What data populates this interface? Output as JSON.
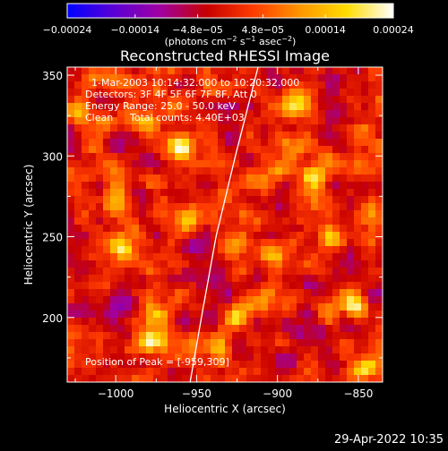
{
  "footer": {
    "timestamp": "29-Apr-2022 10:35"
  },
  "chart_data": {
    "type": "heatmap",
    "title": "Reconstructed RHESSI Image",
    "xlabel": "Heliocentric X (arcsec)",
    "ylabel": "Heliocentric Y (arcsec)",
    "xlim": [
      -1030,
      -835
    ],
    "ylim": [
      160,
      355
    ],
    "x_ticks": [
      -1000,
      -950,
      -900,
      -850
    ],
    "x_tick_labels": [
      "−1000",
      "−950",
      "−900",
      "−850"
    ],
    "y_ticks": [
      200,
      250,
      300,
      350
    ],
    "y_tick_labels": [
      "200",
      "250",
      "300",
      "350"
    ],
    "colorbar": {
      "range": [
        -0.00024,
        0.00024
      ],
      "ticks": [
        -0.00024,
        -0.00014,
        -4.8e-05,
        4.8e-05,
        0.00014,
        0.00024
      ],
      "tick_labels": [
        "−0.00024",
        "−0.00014",
        "−4.8e−05",
        "4.8e−05",
        "0.00014",
        "0.00024"
      ],
      "unit_main": "(photons cm",
      "unit_sup1": "−2",
      "unit_mid": " s",
      "unit_sup2": "−1",
      "unit_end": " asec",
      "unit_sup3": "−2",
      "unit_close": ")",
      "colormap": [
        "#0000ff",
        "#5a00d6",
        "#a000a0",
        "#c80000",
        "#ff3c00",
        "#ff9600",
        "#ffdc00",
        "#ffffff"
      ]
    },
    "annotations": {
      "time_range": "1-Mar-2003 10:14:32.000 to 10:20:32.000",
      "detectors": "Detectors: 3F 4F 5F 6F 7F 8F, Att 0",
      "energy_range": "Energy Range: 25.0 - 50.0 keV",
      "method": "Clean",
      "total_counts": "Total counts: 4.40E+03",
      "peak": "Position of Peak = [-959,309]"
    },
    "limb_curve": [
      [
        -954,
        160
      ],
      [
        -947,
        200
      ],
      [
        -938,
        250
      ],
      [
        -926,
        300
      ],
      [
        -912,
        355
      ]
    ],
    "hot_spots": [
      {
        "x": -1000,
        "y": 275,
        "value": 0.00018
      },
      {
        "x": -997,
        "y": 243,
        "value": 0.0002
      },
      {
        "x": -981,
        "y": 320,
        "value": 0.00016
      },
      {
        "x": -961,
        "y": 306,
        "value": 0.00024
      },
      {
        "x": -975,
        "y": 202,
        "value": 0.00018
      },
      {
        "x": -978,
        "y": 185,
        "value": 0.0002
      },
      {
        "x": -890,
        "y": 330,
        "value": 0.00016
      },
      {
        "x": -877,
        "y": 287,
        "value": 0.0002
      },
      {
        "x": -868,
        "y": 250,
        "value": 0.00018
      },
      {
        "x": -852,
        "y": 208,
        "value": 0.0002
      },
      {
        "x": -845,
        "y": 170,
        "value": 0.00018
      },
      {
        "x": -925,
        "y": 200,
        "value": 0.00016
      },
      {
        "x": -1022,
        "y": 330,
        "value": 0.00014
      },
      {
        "x": -938,
        "y": 183,
        "value": 0.00016
      },
      {
        "x": -955,
        "y": 260,
        "value": 0.00012
      },
      {
        "x": -905,
        "y": 240,
        "value": 0.00014
      }
    ]
  }
}
